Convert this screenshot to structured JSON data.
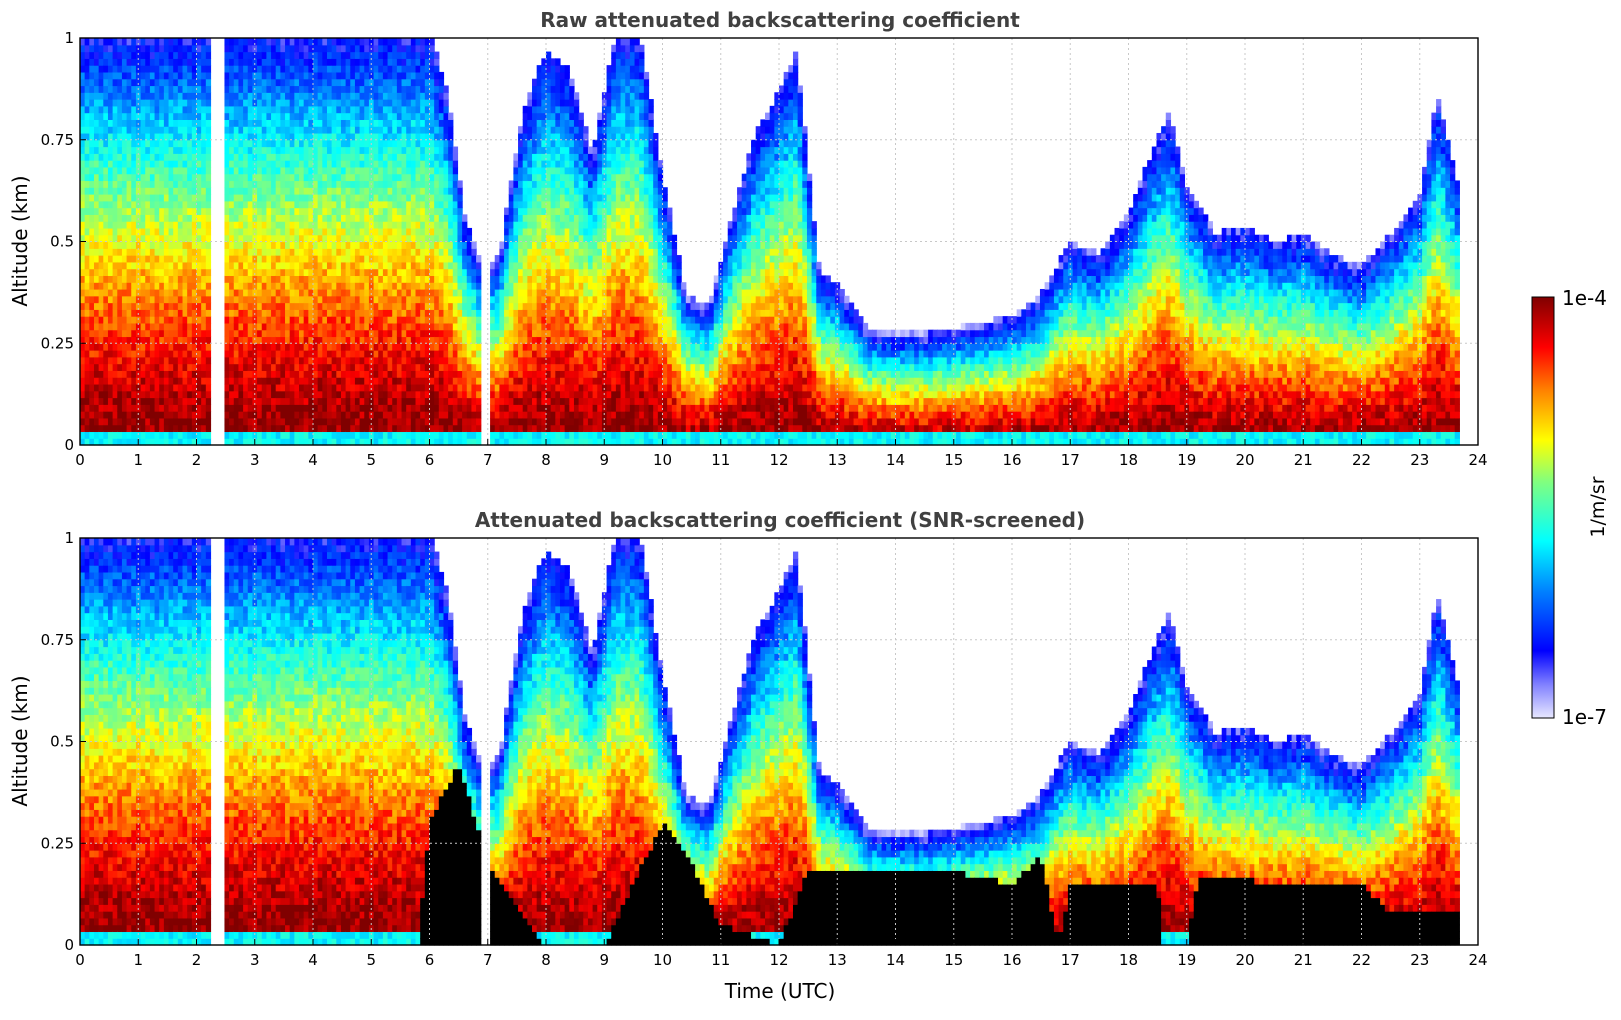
{
  "colors": {
    "jet_low": "#e8e8ff",
    "jet_blue": "#0000ff",
    "jet_cyan": "#00ffff",
    "jet_yellow": "#ffff00",
    "jet_red": "#ff0000",
    "jet_high": "#800000",
    "screened_mask": "#000000",
    "title_gray": "#404040",
    "grid": "#c8c8c8"
  },
  "chart_data": [
    {
      "type": "heatmap",
      "title": "Raw attenuated backscattering coefficient",
      "xlabel": "",
      "ylabel": "Altitude (km)",
      "xlim": [
        0,
        24
      ],
      "ylim": [
        0,
        1
      ],
      "x_ticks": [
        "0",
        "1",
        "2",
        "3",
        "4",
        "5",
        "6",
        "7",
        "8",
        "9",
        "10",
        "11",
        "12",
        "13",
        "14",
        "15",
        "16",
        "17",
        "18",
        "19",
        "20",
        "21",
        "22",
        "23",
        "24"
      ],
      "y_ticks": [
        "0",
        "0.25",
        "0.5",
        "0.75",
        "1"
      ],
      "grid": true,
      "screened": false,
      "no_data_gaps_utc": [
        [
          2.28,
          2.5
        ],
        [
          6.92,
          7.0
        ]
      ],
      "data_end_utc": 23.7,
      "cloud_top_km": {
        "time_utc": [
          0,
          0.5,
          1,
          1.5,
          2,
          2.5,
          3,
          3.5,
          4,
          4.5,
          5,
          5.5,
          6,
          6.3,
          6.6,
          6.9,
          7.2,
          7.6,
          8.0,
          8.4,
          8.8,
          9.2,
          9.6,
          10.0,
          10.4,
          10.8,
          11.2,
          11.6,
          12.0,
          12.3,
          12.7,
          13.0,
          13.5,
          14.0,
          14.5,
          15.0,
          15.5,
          16.0,
          16.5,
          17.0,
          17.5,
          18.0,
          18.4,
          18.7,
          19.0,
          19.5,
          20.0,
          20.5,
          21.0,
          21.5,
          22.0,
          22.5,
          23.0,
          23.3,
          23.7
        ],
        "altitude_km": [
          1.0,
          1.0,
          1.0,
          1.0,
          1.0,
          1.0,
          1.0,
          1.0,
          1.0,
          1.0,
          1.0,
          1.0,
          1.0,
          0.85,
          0.55,
          0.42,
          0.45,
          0.8,
          0.95,
          0.9,
          0.7,
          1.0,
          1.0,
          0.65,
          0.35,
          0.32,
          0.55,
          0.75,
          0.85,
          0.95,
          0.4,
          0.38,
          0.27,
          0.26,
          0.26,
          0.27,
          0.28,
          0.3,
          0.35,
          0.48,
          0.45,
          0.55,
          0.7,
          0.8,
          0.62,
          0.5,
          0.52,
          0.48,
          0.5,
          0.45,
          0.42,
          0.5,
          0.6,
          0.85,
          0.6
        ]
      }
    },
    {
      "type": "heatmap",
      "title": "Attenuated backscattering coefficient (SNR-screened)",
      "xlabel": "Time (UTC)",
      "ylabel": "Altitude (km)",
      "xlim": [
        0,
        24
      ],
      "ylim": [
        0,
        1
      ],
      "x_ticks": [
        "0",
        "1",
        "2",
        "3",
        "4",
        "5",
        "6",
        "7",
        "8",
        "9",
        "10",
        "11",
        "12",
        "13",
        "14",
        "15",
        "16",
        "17",
        "18",
        "19",
        "20",
        "21",
        "22",
        "23",
        "24"
      ],
      "y_ticks": [
        "0",
        "0.25",
        "0.5",
        "0.75",
        "1"
      ],
      "grid": true,
      "screened": true,
      "no_data_gaps_utc": [
        [
          2.28,
          2.5
        ],
        [
          6.92,
          7.0
        ]
      ],
      "data_end_utc": 23.7,
      "screened_below_km": {
        "time_utc": [
          0,
          5.8,
          6.0,
          6.5,
          7.0,
          8.0,
          9.0,
          9.5,
          10.0,
          10.5,
          11.0,
          12.0,
          12.5,
          13.0,
          14.0,
          15.0,
          16.0,
          16.5,
          16.8,
          17.0,
          18.5,
          18.6,
          19.0,
          19.2,
          20.0,
          21.0,
          22.0,
          22.5,
          23.0,
          23.5,
          23.7
        ],
        "altitude_km": [
          0,
          0,
          0.3,
          0.45,
          0.2,
          0.0,
          0.0,
          0.15,
          0.3,
          0.2,
          0.05,
          0.0,
          0.18,
          0.18,
          0.18,
          0.18,
          0.15,
          0.22,
          0.0,
          0.15,
          0.15,
          0.0,
          0.0,
          0.16,
          0.16,
          0.15,
          0.15,
          0.08,
          0.08,
          0.08,
          0.08
        ]
      }
    }
  ],
  "colorbar": {
    "label": "1/m/sr",
    "max_label": "1e-4",
    "min_label": "1e-7",
    "scale": "log"
  }
}
